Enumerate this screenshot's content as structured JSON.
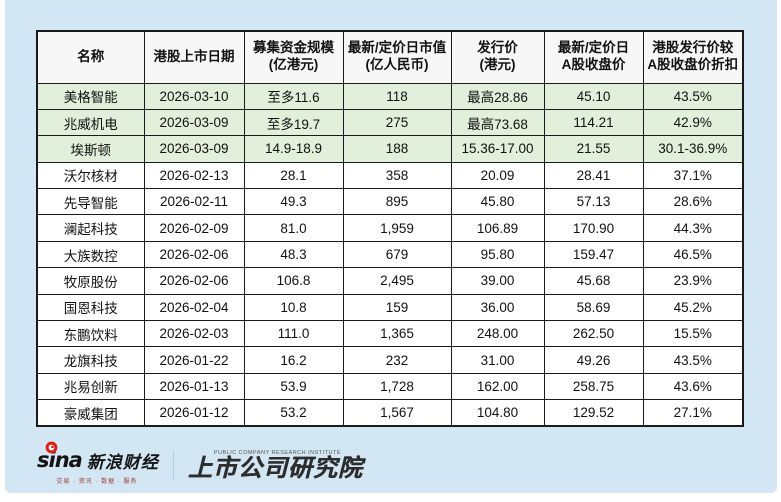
{
  "chart_data": {
    "type": "table",
    "title": "",
    "columns": [
      "名称",
      "港股上市日期",
      "募集资金规模\n(亿港元)",
      "最新/定价日市值\n(亿人民币)",
      "发行价\n(港元)",
      "最新/定价日\nA股收盘价",
      "港股发行价较\nA股收盘价折扣"
    ],
    "rows": [
      [
        "美格智能",
        "2026-03-10",
        "至多11.6",
        "118",
        "最高28.86",
        "45.10",
        "43.5%"
      ],
      [
        "兆威机电",
        "2026-03-09",
        "至多19.7",
        "275",
        "最高73.68",
        "114.21",
        "42.9%"
      ],
      [
        "埃斯顿",
        "2026-03-09",
        "14.9-18.9",
        "188",
        "15.36-17.00",
        "21.55",
        "30.1-36.9%"
      ],
      [
        "沃尔核材",
        "2026-02-13",
        "28.1",
        "358",
        "20.09",
        "28.41",
        "37.1%"
      ],
      [
        "先导智能",
        "2026-02-11",
        "49.3",
        "895",
        "45.80",
        "57.13",
        "28.6%"
      ],
      [
        "澜起科技",
        "2026-02-09",
        "81.0",
        "1,959",
        "106.89",
        "170.90",
        "44.3%"
      ],
      [
        "大族数控",
        "2026-02-06",
        "48.3",
        "679",
        "95.80",
        "159.47",
        "46.5%"
      ],
      [
        "牧原股份",
        "2026-02-06",
        "106.8",
        "2,495",
        "39.00",
        "45.68",
        "23.9%"
      ],
      [
        "国恩科技",
        "2026-02-04",
        "10.8",
        "159",
        "36.00",
        "58.69",
        "45.2%"
      ],
      [
        "东鹏饮料",
        "2026-02-03",
        "111.0",
        "1,365",
        "248.00",
        "262.50",
        "15.5%"
      ],
      [
        "龙旗科技",
        "2026-01-22",
        "16.2",
        "232",
        "31.00",
        "49.26",
        "43.5%"
      ],
      [
        "兆易创新",
        "2026-01-13",
        "53.9",
        "1,728",
        "162.00",
        "258.75",
        "43.6%"
      ],
      [
        "豪威集团",
        "2026-01-12",
        "53.2",
        "1,567",
        "104.80",
        "129.52",
        "27.1%"
      ]
    ],
    "highlighted_rows": [
      0,
      1,
      2
    ],
    "layout_hints": {
      "highlight_color": "#e2efda",
      "grid": true,
      "header_bold": true
    }
  },
  "footer": {
    "sina_brand": "sina",
    "sina_cn": "新浪财经",
    "sina_tagline": "交易 · 资讯 · 数据 · 服务",
    "institute_en": "PUBLIC COMPANY RESEARCH INSTITUTE",
    "institute_cn": "上市公司研究院"
  },
  "colors": {
    "page_background": "#d3e6f3",
    "highlight_row": "#e2efda",
    "table_border": "#1a1a1a",
    "sina_red": "#e3170d"
  }
}
